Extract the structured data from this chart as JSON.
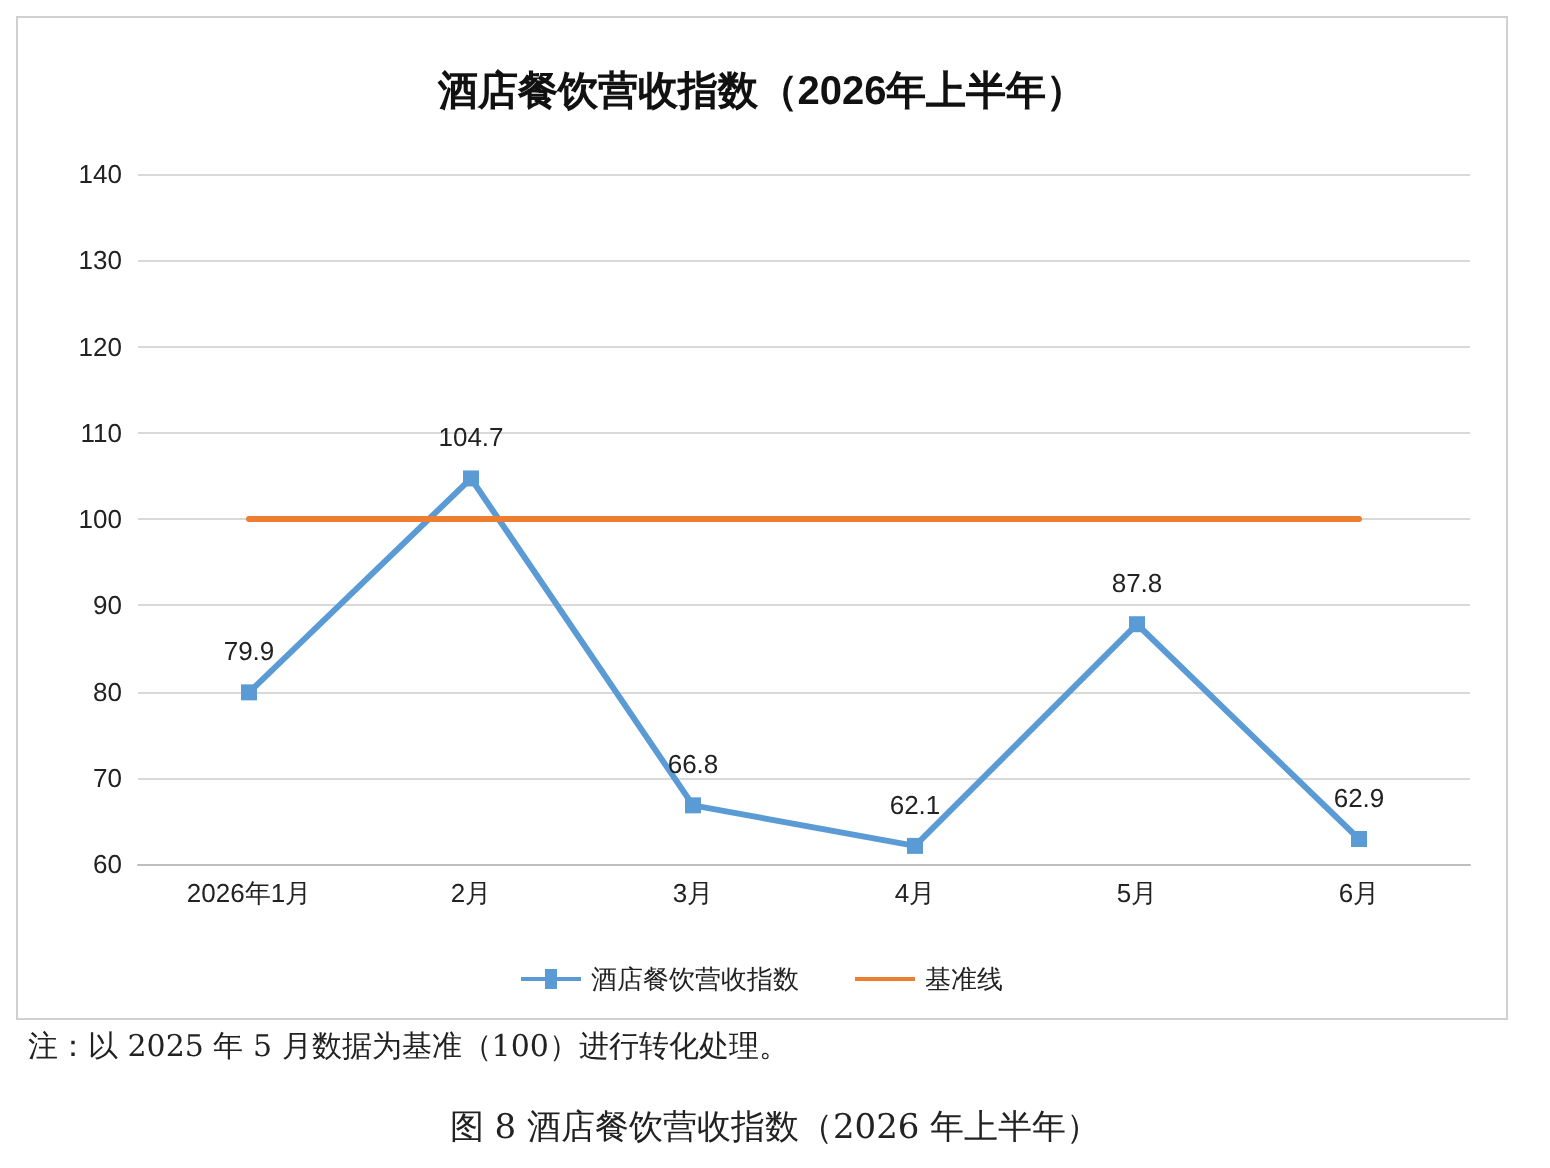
{
  "chart_data": {
    "type": "line",
    "title": "酒店餐饮营收指数（2026年上半年）",
    "categories": [
      "2026年1月",
      "2月",
      "3月",
      "4月",
      "5月",
      "6月"
    ],
    "series": [
      {
        "name": "酒店餐饮营收指数",
        "color": "#5b9bd5",
        "values": [
          79.9,
          104.7,
          66.8,
          62.1,
          87.8,
          62.9
        ],
        "value_labels": [
          "79.9",
          "104.7",
          "66.8",
          "62.1",
          "87.8",
          "62.9"
        ],
        "marker": "square"
      },
      {
        "name": "基准线",
        "color": "#ed7d31",
        "values": [
          100,
          100,
          100,
          100,
          100,
          100
        ],
        "marker": "none"
      }
    ],
    "ylim": [
      60,
      140
    ],
    "yticks": [
      60,
      70,
      80,
      90,
      100,
      110,
      120,
      130,
      140
    ],
    "grid": "y",
    "legend": "bottom",
    "line_style": "solid",
    "annotations": [
      "注：以 2025 年 5 月数据为基准（100）进行转化处理。",
      "图 8 酒店餐饮营收指数（2026 年上半年）"
    ]
  }
}
